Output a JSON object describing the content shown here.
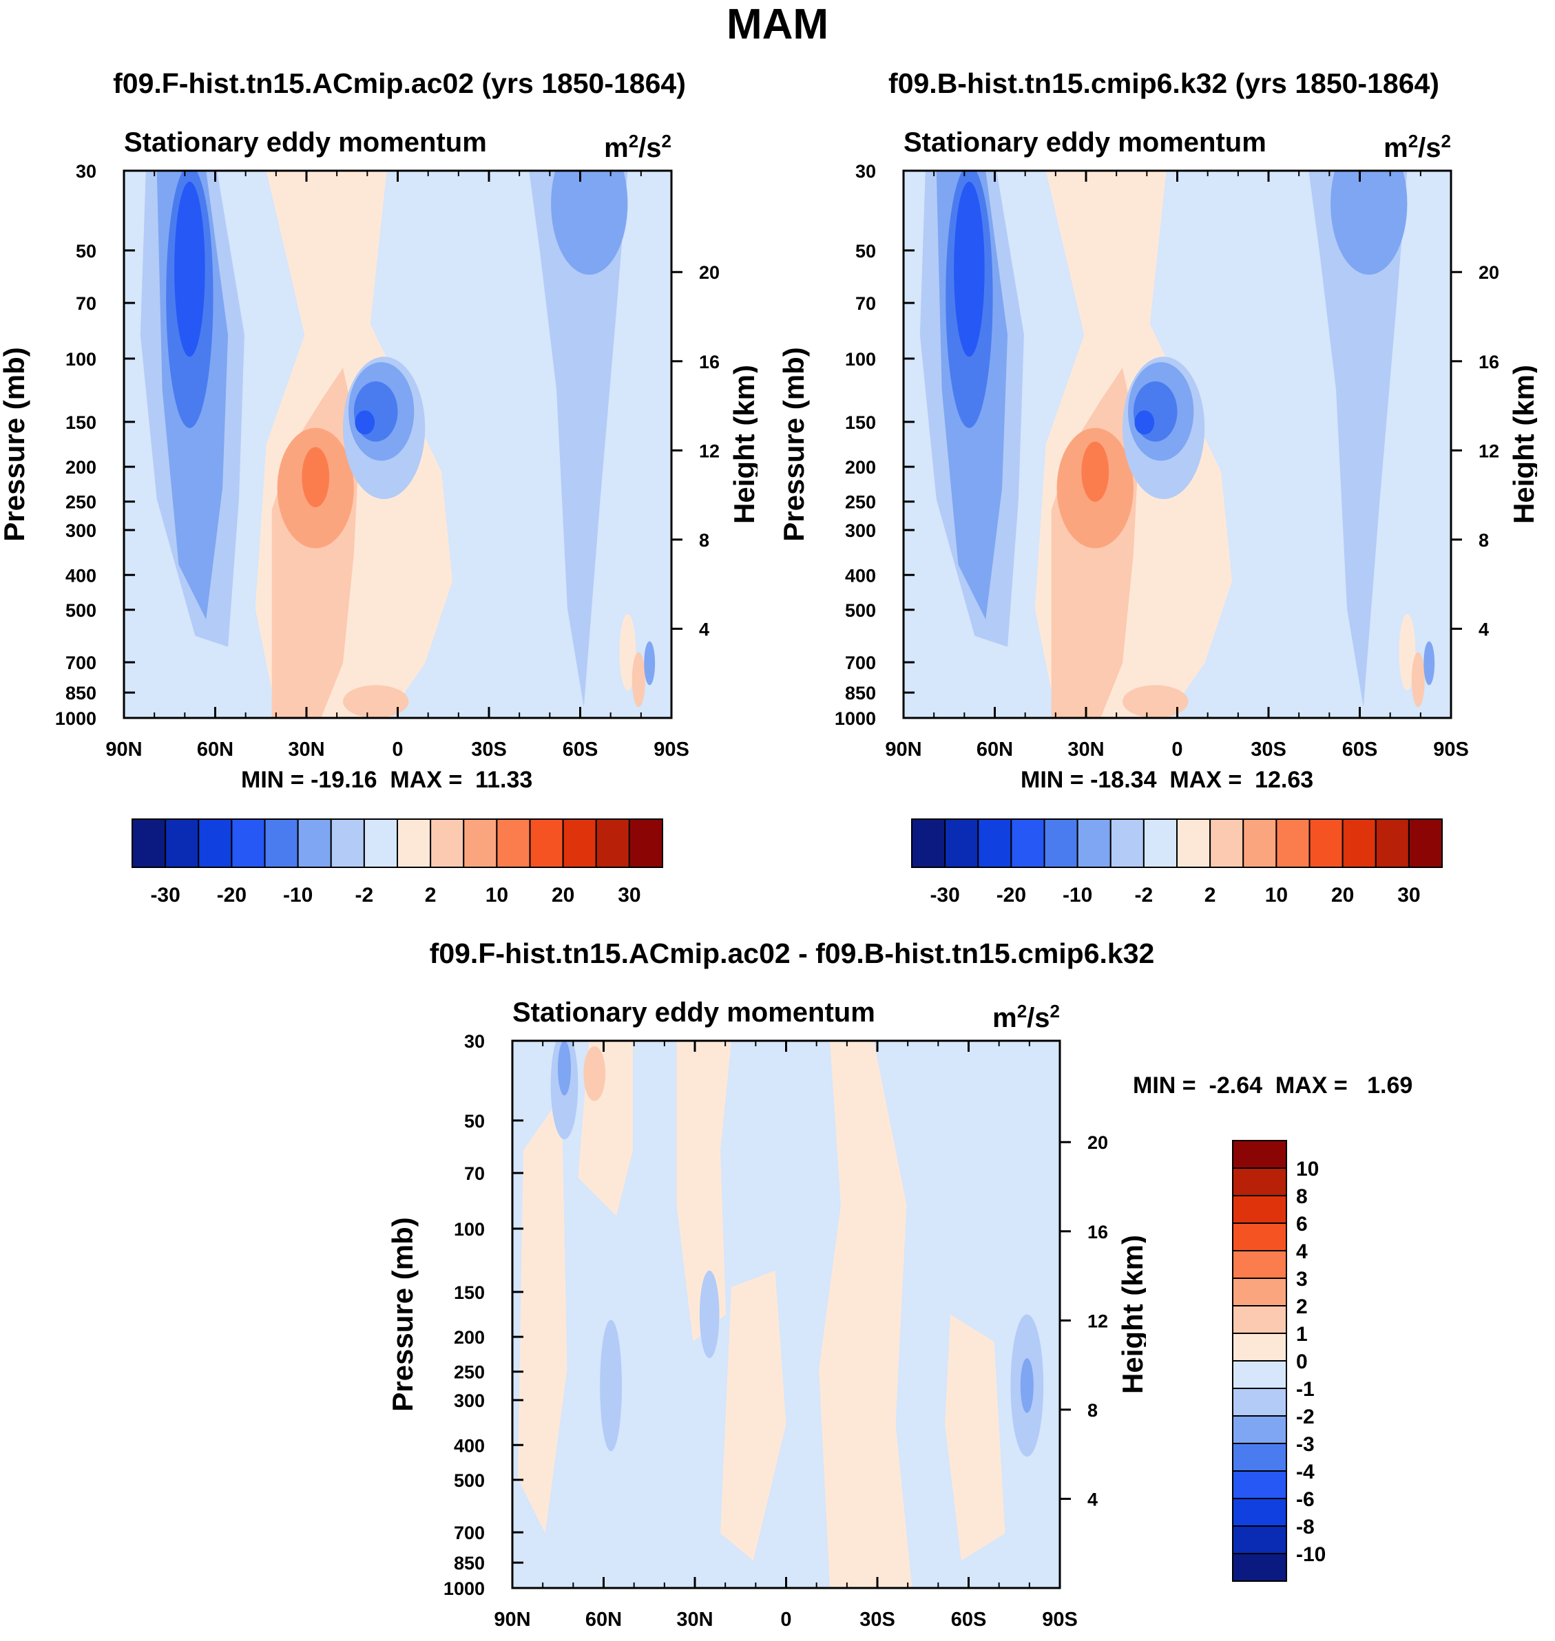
{
  "figure": {
    "title": "MAM"
  },
  "chart_data": [
    {
      "type": "contour",
      "panel": "model_a",
      "title": "f09.F-hist.tn15.ACmip.ac02 (yrs 1850-1864)",
      "subtitle_left": "Stationary eddy momentum",
      "units_base": "m",
      "units_exp1": "2",
      "units_mid": "/s",
      "units_exp2": "2",
      "ylabel": "Pressure (mb)",
      "ylabel_right": "Height (km)",
      "x_ticks": [
        "90N",
        "60N",
        "30N",
        "0",
        "30S",
        "60S",
        "90S"
      ],
      "y_ticks": [
        "30",
        "50",
        "70",
        "100",
        "150",
        "200",
        "250",
        "300",
        "400",
        "500",
        "700",
        "850",
        "1000"
      ],
      "y_ticks_right": [
        "20",
        "16",
        "12",
        "8",
        "4"
      ],
      "min_max_text": "MIN = -19.16  MAX =  11.33",
      "min": -19.16,
      "max": 11.33,
      "colorbar_labels": [
        "-30",
        "-20",
        "-10",
        "-2",
        "2",
        "10",
        "20",
        "30"
      ]
    },
    {
      "type": "contour",
      "panel": "model_b",
      "title": "f09.B-hist.tn15.cmip6.k32 (yrs 1850-1864)",
      "subtitle_left": "Stationary eddy momentum",
      "units_base": "m",
      "units_exp1": "2",
      "units_mid": "/s",
      "units_exp2": "2",
      "ylabel": "Pressure (mb)",
      "ylabel_right": "Height (km)",
      "x_ticks": [
        "90N",
        "60N",
        "30N",
        "0",
        "30S",
        "60S",
        "90S"
      ],
      "y_ticks": [
        "30",
        "50",
        "70",
        "100",
        "150",
        "200",
        "250",
        "300",
        "400",
        "500",
        "700",
        "850",
        "1000"
      ],
      "y_ticks_right": [
        "20",
        "16",
        "12",
        "8",
        "4"
      ],
      "min_max_text": "MIN = -18.34  MAX =  12.63",
      "min": -18.34,
      "max": 12.63,
      "colorbar_labels": [
        "-30",
        "-20",
        "-10",
        "-2",
        "2",
        "10",
        "20",
        "30"
      ]
    },
    {
      "type": "contour",
      "panel": "difference",
      "title": "f09.F-hist.tn15.ACmip.ac02 - f09.B-hist.tn15.cmip6.k32",
      "subtitle_left": "Stationary eddy momentum",
      "units_base": "m",
      "units_exp1": "2",
      "units_mid": "/s",
      "units_exp2": "2",
      "ylabel": "Pressure (mb)",
      "ylabel_right": "Height (km)",
      "x_ticks": [
        "90N",
        "60N",
        "30N",
        "0",
        "30S",
        "60S",
        "90S"
      ],
      "y_ticks": [
        "30",
        "50",
        "70",
        "100",
        "150",
        "200",
        "250",
        "300",
        "400",
        "500",
        "700",
        "850",
        "1000"
      ],
      "y_ticks_right": [
        "20",
        "16",
        "12",
        "8",
        "4"
      ],
      "min_max_text": "MIN =  -2.64  MAX =   1.69",
      "min": -2.64,
      "max": 1.69,
      "colorbar_labels": [
        "10",
        "8",
        "6",
        "4",
        "3",
        "2",
        "1",
        "0",
        "-1",
        "-2",
        "-3",
        "-4",
        "-6",
        "-8",
        "-10"
      ]
    }
  ],
  "palette": {
    "main": [
      "#0b1a80",
      "#0a2cb5",
      "#1040e0",
      "#2558f5",
      "#4a7cf0",
      "#7fa6f2",
      "#b3cbf7",
      "#d6e6fb",
      "#fde8d8",
      "#fccab0",
      "#fba57f",
      "#fb7d4e",
      "#f65323",
      "#df330c",
      "#b82008",
      "#8b0505"
    ],
    "diff": [
      "#8b0505",
      "#b82008",
      "#df330c",
      "#f65323",
      "#fb7d4e",
      "#fba57f",
      "#fccab0",
      "#fde8d8",
      "#d6e6fb",
      "#b3cbf7",
      "#7fa6f2",
      "#4a7cf0",
      "#2558f5",
      "#1040e0",
      "#0a2cb5",
      "#0b1a80"
    ]
  }
}
